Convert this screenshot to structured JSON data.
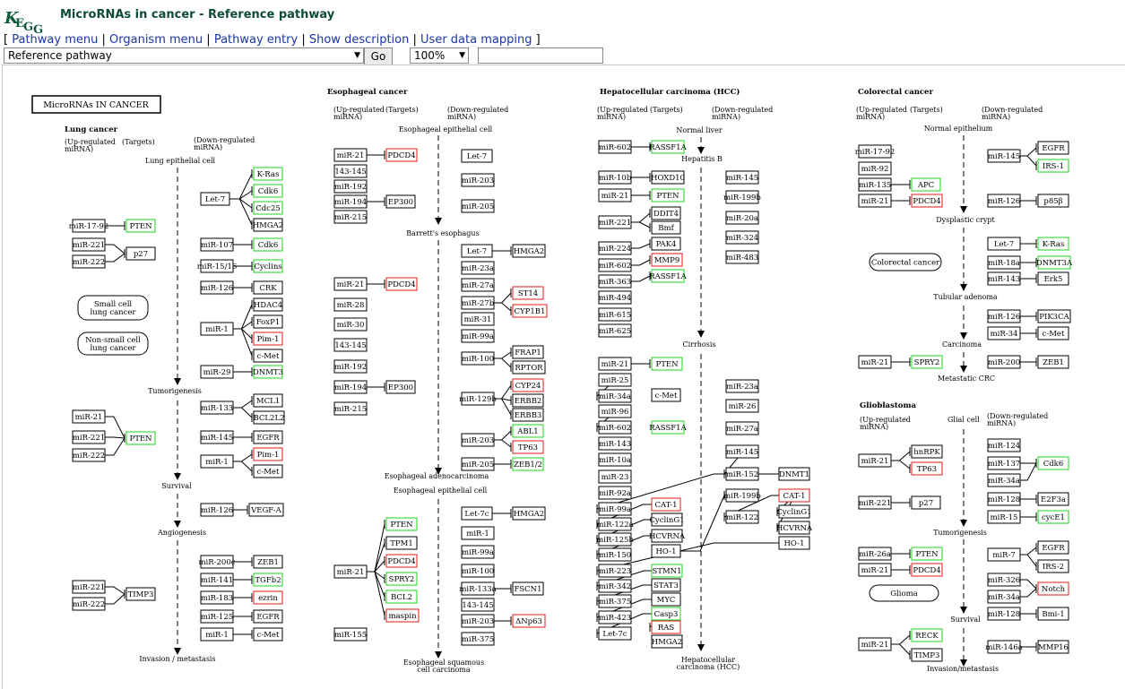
{
  "app": {
    "logo_text": "KEGG",
    "title": "MicroRNAs in cancer - Reference pathway",
    "colors": {
      "title": "#0d4c32",
      "link": "#1a35a6",
      "logo": "#0d5b3a",
      "up_target": "#1fd31f",
      "down_target": "#e11a1a"
    }
  },
  "menu": {
    "open_bracket": "[",
    "close_bracket": "]",
    "separator": "|",
    "items": [
      "Pathway menu",
      "Organism menu",
      "Pathway entry",
      "Show description",
      "User data mapping"
    ]
  },
  "controls": {
    "pathway_select": "Reference pathway",
    "go_label": "Go",
    "zoom": "100%",
    "search_value": ""
  },
  "diagram": {
    "title": "MicroRNAs IN CANCER",
    "sections": [
      {
        "key": "lung",
        "name": "Lung cancer",
        "up": "(Up-regulated miRNA)",
        "targets": "(Targets)",
        "down": "(Down-regulated miRNA)"
      },
      {
        "key": "eso",
        "name": "Esophageal cancer",
        "up": "(Up-regulated miRNA)",
        "targets": "(Targets)",
        "down": "(Down-regulated miRNA)"
      },
      {
        "key": "hcc",
        "name": "Hepatocellular carcinoma (HCC)",
        "up": "(Up-regulated miRNA)",
        "targets": "(Targets)",
        "down": "(Down-regulated miRNA)"
      },
      {
        "key": "crc",
        "name": "Colorectal cancer",
        "up": "(Up-regulated miRNA)",
        "targets": "(Targets)",
        "down": "(Down-regulated miRNA)"
      },
      {
        "key": "gbm",
        "name": "Glioblastoma",
        "up": "(Up-regulated miRNA)",
        "targets": "Glial cell",
        "down": "(Down-regulated miRNA)"
      }
    ],
    "stages": {
      "lung": [
        "Lung epithelial cell",
        "Tumorigenesis",
        "Survival",
        "Angiogenesis",
        "Invasion / metastasis"
      ],
      "eso": [
        "Esophageal epithelial cell",
        "Barrett's esophagus",
        "Esophageal adenocarcinoma",
        "Esophageal epithelial cell",
        "Esophageal squamous cell carcinoma"
      ],
      "hcc": [
        "Normal liver",
        "Hepatitis B",
        "Cirrhosis",
        "Hepatocellular carcinoma (HCC)"
      ],
      "crc": [
        "Normal epithelium",
        "Dysplastic crypt",
        "Tubular adenoma",
        "Carcinoma",
        "Metastatic CRC"
      ],
      "gbm": [
        "Tumorigenesis",
        "Survival",
        "Invasion/metastasis"
      ]
    },
    "disease_labels": [
      "Small cell lung cancer",
      "Non-small cell lung cancer",
      "Colorectal cancer",
      "Glioma"
    ],
    "nodes": {
      "lung": [
        {
          "t": "K-Ras",
          "c": "g"
        },
        {
          "t": "Cdk6",
          "c": "g"
        },
        {
          "t": "Cdc25",
          "c": "g"
        },
        {
          "t": "HMGA2",
          "c": "k"
        },
        {
          "t": "Let-7",
          "c": "k"
        },
        {
          "t": "miR-17-92",
          "c": "k"
        },
        {
          "t": "PTEN",
          "c": "g"
        },
        {
          "t": "miR-221",
          "c": "k"
        },
        {
          "t": "miR-222",
          "c": "k"
        },
        {
          "t": "p27",
          "c": "k"
        },
        {
          "t": "miR-107",
          "c": "k"
        },
        {
          "t": "Cdk6",
          "c": "g"
        },
        {
          "t": "miR-15/16",
          "c": "k"
        },
        {
          "t": "Cyclins",
          "c": "g"
        },
        {
          "t": "miR-126",
          "c": "k"
        },
        {
          "t": "CRK",
          "c": "k"
        },
        {
          "t": "HDAC4",
          "c": "k"
        },
        {
          "t": "FoxP1",
          "c": "k"
        },
        {
          "t": "Pim-1",
          "c": "r"
        },
        {
          "t": "c-Met",
          "c": "k"
        },
        {
          "t": "miR-1",
          "c": "k"
        },
        {
          "t": "miR-29",
          "c": "k"
        },
        {
          "t": "DNMT3",
          "c": "g"
        },
        {
          "t": "MCL1",
          "c": "k"
        },
        {
          "t": "BCL2L2",
          "c": "k"
        },
        {
          "t": "miR-133",
          "c": "k"
        },
        {
          "t": "miR-21",
          "c": "k"
        },
        {
          "t": "miR-221",
          "c": "k"
        },
        {
          "t": "miR-222",
          "c": "k"
        },
        {
          "t": "PTEN",
          "c": "g"
        },
        {
          "t": "miR-145",
          "c": "k"
        },
        {
          "t": "EGFR",
          "c": "k"
        },
        {
          "t": "miR-1",
          "c": "k"
        },
        {
          "t": "Pim-1",
          "c": "r"
        },
        {
          "t": "c-Met",
          "c": "k"
        },
        {
          "t": "miR-126",
          "c": "k"
        },
        {
          "t": "VEGF-A",
          "c": "k"
        },
        {
          "t": "miR-200c",
          "c": "k"
        },
        {
          "t": "ZEB1",
          "c": "k"
        },
        {
          "t": "miR-141",
          "c": "k"
        },
        {
          "t": "TGFb2",
          "c": "g"
        },
        {
          "t": "miR-183",
          "c": "k"
        },
        {
          "t": "ezrin",
          "c": "r"
        },
        {
          "t": "miR-125",
          "c": "k"
        },
        {
          "t": "EGFR",
          "c": "k"
        },
        {
          "t": "miR-1",
          "c": "k"
        },
        {
          "t": "c-Met",
          "c": "k"
        },
        {
          "t": "miR-221",
          "c": "k"
        },
        {
          "t": "miR-222",
          "c": "k"
        },
        {
          "t": "TIMP3",
          "c": "k"
        }
      ],
      "eso": [
        {
          "t": "miR-21",
          "c": "k"
        },
        {
          "t": "PDCD4",
          "c": "r"
        },
        {
          "t": "143-145",
          "c": "k"
        },
        {
          "t": "miR-192",
          "c": "k"
        },
        {
          "t": "miR-194",
          "c": "k"
        },
        {
          "t": "EP300",
          "c": "k"
        },
        {
          "t": "miR-215",
          "c": "k"
        },
        {
          "t": "Let-7",
          "c": "k"
        },
        {
          "t": "miR-203",
          "c": "k"
        },
        {
          "t": "miR-205",
          "c": "k"
        },
        {
          "t": "Let-7",
          "c": "k"
        },
        {
          "t": "HMGA2",
          "c": "k"
        },
        {
          "t": "miR-23a",
          "c": "k"
        },
        {
          "t": "miR-27a",
          "c": "k"
        },
        {
          "t": "miR-27b",
          "c": "k"
        },
        {
          "t": "ST14",
          "c": "r"
        },
        {
          "t": "CYP1B1",
          "c": "r"
        },
        {
          "t": "miR-31",
          "c": "k"
        },
        {
          "t": "miR-99a",
          "c": "k"
        },
        {
          "t": "miR-100",
          "c": "k"
        },
        {
          "t": "FRAP1",
          "c": "k"
        },
        {
          "t": "RPTOR",
          "c": "k"
        },
        {
          "t": "miR-129b",
          "c": "k"
        },
        {
          "t": "CYP24",
          "c": "r"
        },
        {
          "t": "ERBB2",
          "c": "k"
        },
        {
          "t": "ERBB3",
          "c": "k"
        },
        {
          "t": "miR-203",
          "c": "k"
        },
        {
          "t": "ABL1",
          "c": "g"
        },
        {
          "t": "TP63",
          "c": "r"
        },
        {
          "t": "miR-205",
          "c": "k"
        },
        {
          "t": "ZEB1/2",
          "c": "g"
        },
        {
          "t": "miR-21",
          "c": "k"
        },
        {
          "t": "PDCD4",
          "c": "r"
        },
        {
          "t": "miR-28",
          "c": "k"
        },
        {
          "t": "miR-30",
          "c": "k"
        },
        {
          "t": "143-145",
          "c": "k"
        },
        {
          "t": "miR-192",
          "c": "k"
        },
        {
          "t": "miR-194",
          "c": "k"
        },
        {
          "t": "EP300",
          "c": "k"
        },
        {
          "t": "miR-215",
          "c": "k"
        },
        {
          "t": "PTEN",
          "c": "g"
        },
        {
          "t": "TPM1",
          "c": "k"
        },
        {
          "t": "PDCD4",
          "c": "r"
        },
        {
          "t": "SPRY2",
          "c": "g"
        },
        {
          "t": "BCL2",
          "c": "g"
        },
        {
          "t": "maspin",
          "c": "r"
        },
        {
          "t": "miR-21",
          "c": "k"
        },
        {
          "t": "miR-155",
          "c": "k"
        },
        {
          "t": "Let-7c",
          "c": "k"
        },
        {
          "t": "HMGA2",
          "c": "k"
        },
        {
          "t": "miR-1",
          "c": "k"
        },
        {
          "t": "miR-99a",
          "c": "k"
        },
        {
          "t": "miR-100",
          "c": "k"
        },
        {
          "t": "miR-133a",
          "c": "k"
        },
        {
          "t": "FSCN1",
          "c": "k"
        },
        {
          "t": "143-145",
          "c": "k"
        },
        {
          "t": "miR-203",
          "c": "k"
        },
        {
          "t": "ΔNp63",
          "c": "r"
        },
        {
          "t": "miR-375",
          "c": "k"
        }
      ],
      "hcc": [
        {
          "t": "miR-602",
          "c": "k"
        },
        {
          "t": "RASSF1A",
          "c": "g"
        },
        {
          "t": "miR-10b",
          "c": "k"
        },
        {
          "t": "HOXD10",
          "c": "k"
        },
        {
          "t": "miR-21",
          "c": "k"
        },
        {
          "t": "PTEN",
          "c": "g"
        },
        {
          "t": "miR-221",
          "c": "k"
        },
        {
          "t": "DDIT4",
          "c": "k"
        },
        {
          "t": "Bmf",
          "c": "k"
        },
        {
          "t": "miR-224",
          "c": "k"
        },
        {
          "t": "PAK4",
          "c": "k"
        },
        {
          "t": "miR-602",
          "c": "k"
        },
        {
          "t": "MMP9",
          "c": "r"
        },
        {
          "t": "miR-363",
          "c": "k"
        },
        {
          "t": "RASSF1A",
          "c": "g"
        },
        {
          "t": "miR-494",
          "c": "k"
        },
        {
          "t": "miR-615",
          "c": "k"
        },
        {
          "t": "miR-625",
          "c": "k"
        },
        {
          "t": "miR-145",
          "c": "k"
        },
        {
          "t": "miR-199b",
          "c": "k"
        },
        {
          "t": "miR-20a",
          "c": "k"
        },
        {
          "t": "miR-324",
          "c": "k"
        },
        {
          "t": "miR-483",
          "c": "k"
        },
        {
          "t": "miR-21",
          "c": "k"
        },
        {
          "t": "PTEN",
          "c": "g"
        },
        {
          "t": "miR-25",
          "c": "k"
        },
        {
          "t": "miR-34a",
          "c": "k"
        },
        {
          "t": "c-Met",
          "c": "k"
        },
        {
          "t": "miR-96",
          "c": "k"
        },
        {
          "t": "miR-602",
          "c": "k"
        },
        {
          "t": "RASSF1A",
          "c": "g"
        },
        {
          "t": "miR-143",
          "c": "k"
        },
        {
          "t": "miR-10a",
          "c": "k"
        },
        {
          "t": "miR-23",
          "c": "k"
        },
        {
          "t": "miR-92a",
          "c": "k"
        },
        {
          "t": "miR-23a",
          "c": "k"
        },
        {
          "t": "miR-26",
          "c": "k"
        },
        {
          "t": "miR-27a",
          "c": "k"
        },
        {
          "t": "miR-145",
          "c": "k"
        },
        {
          "t": "miR-152",
          "c": "k"
        },
        {
          "t": "DNMT1",
          "c": "k"
        },
        {
          "t": "miR-99a",
          "c": "k"
        },
        {
          "t": "CAT-1",
          "c": "r"
        },
        {
          "t": "miR-122a",
          "c": "k"
        },
        {
          "t": "CyclinG1",
          "c": "k"
        },
        {
          "t": "miR-125b",
          "c": "k"
        },
        {
          "t": "HCVRNA",
          "c": "k"
        },
        {
          "t": "miR-150",
          "c": "k"
        },
        {
          "t": "HO-1",
          "c": "k"
        },
        {
          "t": "miR-199b",
          "c": "k"
        },
        {
          "t": "CAT-1",
          "c": "r"
        },
        {
          "t": "miR-122",
          "c": "k"
        },
        {
          "t": "CyclinG1",
          "c": "k"
        },
        {
          "t": "HCVRNA",
          "c": "k"
        },
        {
          "t": "HO-1",
          "c": "k"
        },
        {
          "t": "miR-223",
          "c": "k"
        },
        {
          "t": "STMN1",
          "c": "g"
        },
        {
          "t": "miR-342",
          "c": "k"
        },
        {
          "t": "STAT3",
          "c": "k"
        },
        {
          "t": "miR-375",
          "c": "k"
        },
        {
          "t": "MYC",
          "c": "k"
        },
        {
          "t": "miR-423",
          "c": "k"
        },
        {
          "t": "Casp3",
          "c": "g"
        },
        {
          "t": "Let-7c",
          "c": "k"
        },
        {
          "t": "RAS",
          "c": "r"
        },
        {
          "t": "HMGA2",
          "c": "k"
        }
      ],
      "crc": [
        {
          "t": "miR-17-92",
          "c": "k"
        },
        {
          "t": "miR-92",
          "c": "k"
        },
        {
          "t": "miR-135",
          "c": "k"
        },
        {
          "t": "APC",
          "c": "g"
        },
        {
          "t": "miR-21",
          "c": "k"
        },
        {
          "t": "PDCD4",
          "c": "r"
        },
        {
          "t": "miR-145",
          "c": "k"
        },
        {
          "t": "EGFR",
          "c": "k"
        },
        {
          "t": "IRS-1",
          "c": "g"
        },
        {
          "t": "miR-126",
          "c": "k"
        },
        {
          "t": "p85β",
          "c": "k"
        },
        {
          "t": "Let-7",
          "c": "k"
        },
        {
          "t": "K-Ras",
          "c": "g"
        },
        {
          "t": "miR-18a",
          "c": "k"
        },
        {
          "t": "DNMT3A",
          "c": "g"
        },
        {
          "t": "miR-143",
          "c": "k"
        },
        {
          "t": "Erk5",
          "c": "k"
        },
        {
          "t": "miR-126",
          "c": "k"
        },
        {
          "t": "PIK3CA",
          "c": "k"
        },
        {
          "t": "miR-34",
          "c": "k"
        },
        {
          "t": "c-Met",
          "c": "k"
        },
        {
          "t": "miR-21",
          "c": "k"
        },
        {
          "t": "SPRY2",
          "c": "g"
        },
        {
          "t": "miR-200",
          "c": "k"
        },
        {
          "t": "ZEB1",
          "c": "k"
        }
      ],
      "gbm": [
        {
          "t": "miR-21",
          "c": "k"
        },
        {
          "t": "hnRPK",
          "c": "k"
        },
        {
          "t": "TP63",
          "c": "r"
        },
        {
          "t": "miR-221",
          "c": "k"
        },
        {
          "t": "p27",
          "c": "k"
        },
        {
          "t": "miR-124",
          "c": "k"
        },
        {
          "t": "miR-137",
          "c": "k"
        },
        {
          "t": "Cdk6",
          "c": "g"
        },
        {
          "t": "miR-34a",
          "c": "k"
        },
        {
          "t": "miR-128",
          "c": "k"
        },
        {
          "t": "E2F3a",
          "c": "k"
        },
        {
          "t": "miR-15",
          "c": "k"
        },
        {
          "t": "cycE1",
          "c": "g"
        },
        {
          "t": "miR-26a",
          "c": "k"
        },
        {
          "t": "PTEN",
          "c": "g"
        },
        {
          "t": "miR-21",
          "c": "k"
        },
        {
          "t": "PDCD4",
          "c": "r"
        },
        {
          "t": "miR-7",
          "c": "k"
        },
        {
          "t": "EGFR",
          "c": "k"
        },
        {
          "t": "IRS-2",
          "c": "k"
        },
        {
          "t": "miR-326",
          "c": "k"
        },
        {
          "t": "miR-34a",
          "c": "k"
        },
        {
          "t": "Notch",
          "c": "r"
        },
        {
          "t": "miR-128",
          "c": "k"
        },
        {
          "t": "Bmi-1",
          "c": "k"
        },
        {
          "t": "miR-21",
          "c": "k"
        },
        {
          "t": "RECK",
          "c": "g"
        },
        {
          "t": "TIMP3",
          "c": "k"
        },
        {
          "t": "miR-146a",
          "c": "k"
        },
        {
          "t": "MMP16",
          "c": "k"
        }
      ]
    }
  }
}
